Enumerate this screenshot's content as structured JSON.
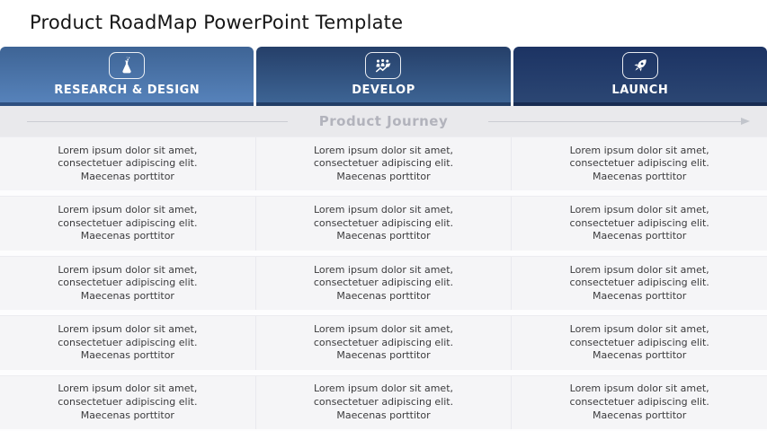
{
  "page": {
    "title": "Product RoadMap PowerPoint Template"
  },
  "journey": {
    "label": "Product Journey"
  },
  "stages": [
    {
      "label": "RESEARCH & DESIGN",
      "icon": "flask-icon",
      "gradient_top": "#3e6495",
      "gradient_bottom": "#5682ba",
      "strip": "#2f5080"
    },
    {
      "label": "DEVELOP",
      "icon": "team-growth-icon",
      "gradient_top": "#253f69",
      "gradient_bottom": "#3d6494",
      "strip": "#223e66"
    },
    {
      "label": "LAUNCH",
      "icon": "rocket-icon",
      "gradient_top": "#1c3363",
      "gradient_bottom": "#2b4673",
      "strip": "#182c52"
    }
  ],
  "table": {
    "rows": [
      {
        "cells": [
          {
            "lines": [
              "Lorem ipsum dolor sit amet,",
              "consectetuer adipiscing elit.",
              "Maecenas porttitor"
            ]
          },
          {
            "lines": [
              "Lorem ipsum dolor sit amet,",
              "consectetuer adipiscing elit.",
              "Maecenas porttitor"
            ]
          },
          {
            "lines": [
              "Lorem ipsum dolor sit amet,",
              "consectetuer adipiscing elit.",
              "Maecenas porttitor"
            ]
          }
        ]
      },
      {
        "cells": [
          {
            "lines": [
              "Lorem ipsum dolor sit amet,",
              "consectetuer adipiscing elit.",
              "Maecenas porttitor"
            ]
          },
          {
            "lines": [
              "Lorem ipsum dolor sit amet,",
              "consectetuer adipiscing elit.",
              "Maecenas porttitor"
            ]
          },
          {
            "lines": [
              "Lorem ipsum dolor sit amet,",
              "consectetuer adipiscing elit.",
              "Maecenas porttitor"
            ]
          }
        ]
      },
      {
        "cells": [
          {
            "lines": [
              "Lorem ipsum dolor sit amet,",
              "consectetuer adipiscing elit.",
              "Maecenas porttitor"
            ]
          },
          {
            "lines": [
              "Lorem ipsum dolor sit amet,",
              "consectetuer adipiscing elit.",
              "Maecenas porttitor"
            ]
          },
          {
            "lines": [
              "Lorem ipsum dolor sit amet,",
              "consectetuer adipiscing elit.",
              "Maecenas porttitor"
            ]
          }
        ]
      },
      {
        "cells": [
          {
            "lines": [
              "Lorem ipsum dolor sit amet,",
              "consectetuer adipiscing elit.",
              "Maecenas porttitor"
            ]
          },
          {
            "lines": [
              "Lorem ipsum dolor sit amet,",
              "consectetuer adipiscing elit.",
              "Maecenas porttitor"
            ]
          },
          {
            "lines": [
              "Lorem ipsum dolor sit amet,",
              "consectetuer adipiscing elit.",
              "Maecenas porttitor"
            ]
          }
        ]
      },
      {
        "cells": [
          {
            "lines": [
              "Lorem ipsum dolor sit amet,",
              "consectetuer adipiscing elit.",
              "Maecenas porttitor"
            ]
          },
          {
            "lines": [
              "Lorem ipsum dolor sit amet,",
              "consectetuer adipiscing elit.",
              "Maecenas porttitor"
            ]
          },
          {
            "lines": [
              "Lorem ipsum dolor sit amet,",
              "consectetuer adipiscing elit.",
              "Maecenas porttitor"
            ]
          }
        ]
      }
    ]
  }
}
